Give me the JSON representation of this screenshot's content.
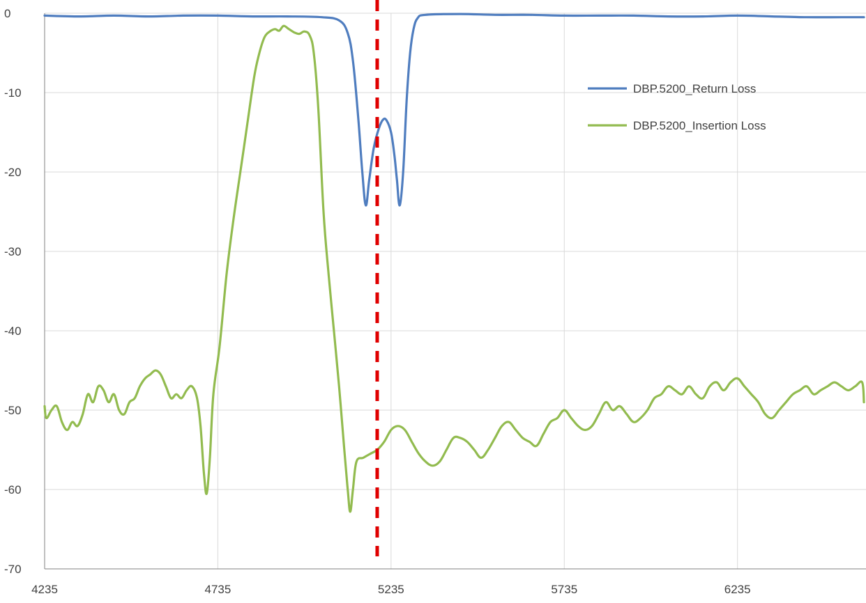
{
  "chart_data": {
    "type": "line",
    "title": "",
    "xlabel": "",
    "ylabel": "",
    "xlim": [
      4235,
      6606
    ],
    "ylim": [
      -70,
      0
    ],
    "x_ticks": [
      4235,
      4735,
      5235,
      5735,
      6235
    ],
    "y_ticks": [
      0,
      -10,
      -20,
      -30,
      -40,
      -50,
      -60,
      -70
    ],
    "grid": true,
    "legend_position": "top-right",
    "marker_line": {
      "x": 5195,
      "style": "dashed",
      "color": "#e00000"
    },
    "series": [
      {
        "name": "DBP.5200_Return Loss",
        "color": "#4f7dbf",
        "points": [
          [
            4235,
            -0.3
          ],
          [
            4335,
            -0.4
          ],
          [
            4435,
            -0.3
          ],
          [
            4535,
            -0.4
          ],
          [
            4635,
            -0.3
          ],
          [
            4735,
            -0.3
          ],
          [
            4835,
            -0.4
          ],
          [
            4935,
            -0.4
          ],
          [
            5035,
            -0.5
          ],
          [
            5085,
            -0.9
          ],
          [
            5110,
            -2.5
          ],
          [
            5125,
            -6
          ],
          [
            5140,
            -13
          ],
          [
            5152,
            -20
          ],
          [
            5162,
            -24.2
          ],
          [
            5172,
            -21
          ],
          [
            5185,
            -17
          ],
          [
            5200,
            -14.5
          ],
          [
            5212,
            -13.4
          ],
          [
            5222,
            -13.5
          ],
          [
            5235,
            -15
          ],
          [
            5245,
            -18
          ],
          [
            5252,
            -21
          ],
          [
            5260,
            -24.2
          ],
          [
            5270,
            -20
          ],
          [
            5280,
            -11
          ],
          [
            5290,
            -5
          ],
          [
            5300,
            -2
          ],
          [
            5312,
            -0.6
          ],
          [
            5335,
            -0.2
          ],
          [
            5435,
            -0.1
          ],
          [
            5535,
            -0.2
          ],
          [
            5635,
            -0.2
          ],
          [
            5735,
            -0.3
          ],
          [
            5835,
            -0.3
          ],
          [
            5935,
            -0.3
          ],
          [
            6035,
            -0.4
          ],
          [
            6135,
            -0.4
          ],
          [
            6235,
            -0.3
          ],
          [
            6335,
            -0.4
          ],
          [
            6435,
            -0.5
          ],
          [
            6535,
            -0.5
          ],
          [
            6600,
            -0.5
          ]
        ]
      },
      {
        "name": "DBP.5200_Insertion Loss",
        "color": "#92bb4f",
        "points": [
          [
            4235,
            -49.5
          ],
          [
            4240,
            -51
          ],
          [
            4255,
            -50
          ],
          [
            4270,
            -49.5
          ],
          [
            4285,
            -51.5
          ],
          [
            4300,
            -52.5
          ],
          [
            4315,
            -51.5
          ],
          [
            4330,
            -52
          ],
          [
            4345,
            -50.5
          ],
          [
            4360,
            -48
          ],
          [
            4375,
            -49
          ],
          [
            4390,
            -47
          ],
          [
            4405,
            -47.5
          ],
          [
            4420,
            -49
          ],
          [
            4435,
            -48
          ],
          [
            4450,
            -50
          ],
          [
            4465,
            -50.5
          ],
          [
            4480,
            -49
          ],
          [
            4495,
            -48.5
          ],
          [
            4510,
            -47
          ],
          [
            4525,
            -46
          ],
          [
            4540,
            -45.5
          ],
          [
            4555,
            -45
          ],
          [
            4570,
            -45.5
          ],
          [
            4585,
            -47
          ],
          [
            4600,
            -48.5
          ],
          [
            4615,
            -48
          ],
          [
            4630,
            -48.5
          ],
          [
            4645,
            -47.5
          ],
          [
            4660,
            -47
          ],
          [
            4675,
            -48.5
          ],
          [
            4685,
            -52
          ],
          [
            4695,
            -58
          ],
          [
            4703,
            -60.5
          ],
          [
            4712,
            -56
          ],
          [
            4722,
            -48
          ],
          [
            4740,
            -42
          ],
          [
            4760,
            -33
          ],
          [
            4780,
            -26
          ],
          [
            4800,
            -20
          ],
          [
            4820,
            -14
          ],
          [
            4840,
            -8
          ],
          [
            4855,
            -5
          ],
          [
            4870,
            -3
          ],
          [
            4885,
            -2.3
          ],
          [
            4900,
            -2
          ],
          [
            4912,
            -2.2
          ],
          [
            4925,
            -1.6
          ],
          [
            4940,
            -2
          ],
          [
            4955,
            -2.4
          ],
          [
            4970,
            -2.6
          ],
          [
            4985,
            -2.3
          ],
          [
            5000,
            -2.8
          ],
          [
            5012,
            -5
          ],
          [
            5025,
            -12
          ],
          [
            5040,
            -25
          ],
          [
            5055,
            -33
          ],
          [
            5070,
            -40
          ],
          [
            5085,
            -47
          ],
          [
            5100,
            -55
          ],
          [
            5110,
            -60
          ],
          [
            5117,
            -62.8
          ],
          [
            5125,
            -60
          ],
          [
            5135,
            -56.5
          ],
          [
            5155,
            -56
          ],
          [
            5175,
            -55.5
          ],
          [
            5195,
            -55
          ],
          [
            5215,
            -54
          ],
          [
            5235,
            -52.5
          ],
          [
            5255,
            -52
          ],
          [
            5275,
            -52.5
          ],
          [
            5295,
            -54
          ],
          [
            5315,
            -55.5
          ],
          [
            5335,
            -56.5
          ],
          [
            5355,
            -57
          ],
          [
            5375,
            -56.5
          ],
          [
            5395,
            -55
          ],
          [
            5415,
            -53.5
          ],
          [
            5435,
            -53.5
          ],
          [
            5455,
            -54
          ],
          [
            5475,
            -55
          ],
          [
            5495,
            -56
          ],
          [
            5515,
            -55
          ],
          [
            5535,
            -53.5
          ],
          [
            5555,
            -52
          ],
          [
            5575,
            -51.5
          ],
          [
            5595,
            -52.5
          ],
          [
            5615,
            -53.5
          ],
          [
            5635,
            -54
          ],
          [
            5655,
            -54.5
          ],
          [
            5675,
            -53
          ],
          [
            5695,
            -51.5
          ],
          [
            5715,
            -51
          ],
          [
            5735,
            -50
          ],
          [
            5755,
            -51
          ],
          [
            5775,
            -52
          ],
          [
            5795,
            -52.5
          ],
          [
            5815,
            -52
          ],
          [
            5835,
            -50.5
          ],
          [
            5855,
            -49
          ],
          [
            5875,
            -50
          ],
          [
            5895,
            -49.5
          ],
          [
            5915,
            -50.5
          ],
          [
            5935,
            -51.5
          ],
          [
            5955,
            -51
          ],
          [
            5975,
            -50
          ],
          [
            5995,
            -48.5
          ],
          [
            6015,
            -48
          ],
          [
            6035,
            -47
          ],
          [
            6055,
            -47.5
          ],
          [
            6075,
            -48
          ],
          [
            6095,
            -47
          ],
          [
            6115,
            -48
          ],
          [
            6135,
            -48.5
          ],
          [
            6155,
            -47
          ],
          [
            6175,
            -46.5
          ],
          [
            6195,
            -47.5
          ],
          [
            6215,
            -46.5
          ],
          [
            6235,
            -46
          ],
          [
            6255,
            -47
          ],
          [
            6275,
            -48
          ],
          [
            6295,
            -49
          ],
          [
            6315,
            -50.5
          ],
          [
            6335,
            -51
          ],
          [
            6355,
            -50
          ],
          [
            6375,
            -49
          ],
          [
            6395,
            -48
          ],
          [
            6415,
            -47.5
          ],
          [
            6435,
            -47
          ],
          [
            6455,
            -48
          ],
          [
            6475,
            -47.5
          ],
          [
            6495,
            -47
          ],
          [
            6515,
            -46.5
          ],
          [
            6535,
            -47
          ],
          [
            6555,
            -47.5
          ],
          [
            6575,
            -47
          ],
          [
            6595,
            -46.5
          ],
          [
            6600,
            -49
          ]
        ]
      }
    ]
  }
}
